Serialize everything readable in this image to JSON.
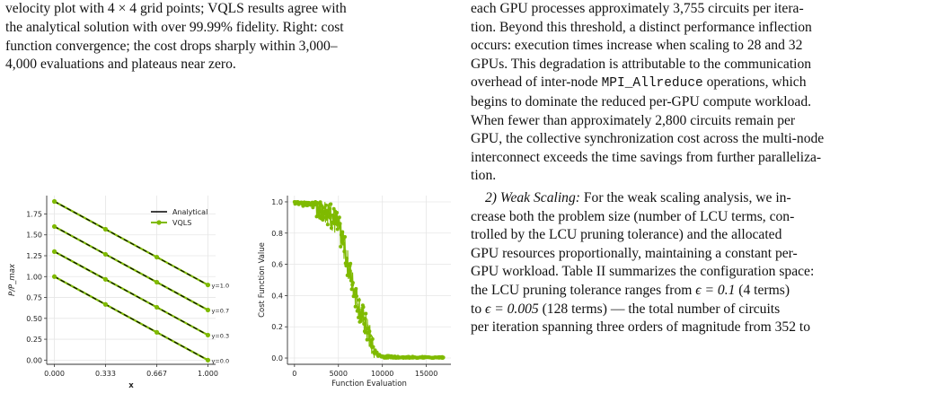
{
  "caption": {
    "line1": "velocity plot with 4 × 4 grid points; VQLS results agree with",
    "line2": "the analytical solution with over 99.99% fidelity. Right: cost",
    "line3": "function convergence; the cost drops sharply within 3,000–",
    "line4": "4,000 evaluations and plateaus near zero."
  },
  "right_column": {
    "p1_a": "each GPU processes approximately 3,755 circuits per itera-",
    "p1_b": "tion. Beyond this threshold, a distinct performance inflection",
    "p1_c": "occurs: execution times increase when scaling to 28 and 32",
    "p1_d": "GPUs. This degradation is attributable to the communication",
    "p1_e_pre": "overhead of inter-node ",
    "p1_e_code": "MPI_Allreduce",
    "p1_e_post": " operations, which",
    "p1_f": "begins to dominate the reduced per-GPU compute workload.",
    "p1_g": "When fewer than approximately 2,800 circuits remain per",
    "p1_h": "GPU, the collective synchronization cost across the multi-node",
    "p1_i": "interconnect exceeds the time savings from further paralleliza-",
    "p1_j": "tion.",
    "p2_heading": "2) Weak Scaling:",
    "p2_a": " For the weak scaling analysis, we in-",
    "p2_b": "crease both the problem size (number of LCU terms, con-",
    "p2_c": "trolled by the LCU pruning tolerance) and the allocated",
    "p2_d": "GPU resources proportionally, maintaining a constant per-",
    "p2_e": "GPU workload. Table II summarizes the configuration space:",
    "p2_f_pre": "the LCU pruning tolerance ranges from ",
    "p2_f_eps1": "ϵ = 0.1",
    "p2_f_post": " (4 terms)",
    "p2_g_pre": "to ",
    "p2_g_eps2": "ϵ = 0.005",
    "p2_g_post": " (128 terms) — the total number of circuits",
    "p2_h": "per iteration spanning three orders of magnitude from 352 to"
  },
  "chart_data": [
    {
      "type": "line",
      "xlabel": "x",
      "ylabel": "P/P_max",
      "xticks": [
        "0.000",
        "0.333",
        "0.667",
        "1.000"
      ],
      "yticks": [
        "0.00",
        "0.25",
        "0.50",
        "0.75",
        "1.00",
        "1.25",
        "1.50",
        "1.75"
      ],
      "xlim": [
        -0.05,
        1.05
      ],
      "ylim": [
        -0.05,
        1.97
      ],
      "grid": true,
      "legend": "top-right",
      "legend_entries": [
        "Analytical",
        "VQLS"
      ],
      "x": [
        0.0,
        0.333,
        0.667,
        1.0
      ],
      "series": [
        {
          "label": "y=1.0",
          "values": [
            1.9,
            1.567,
            1.233,
            0.9
          ]
        },
        {
          "label": "y=0.7",
          "values": [
            1.6,
            1.267,
            0.933,
            0.6
          ]
        },
        {
          "label": "y=0.3",
          "values": [
            1.3,
            0.967,
            0.633,
            0.3
          ]
        },
        {
          "label": "y=0.0",
          "values": [
            1.0,
            0.667,
            0.333,
            0.0
          ]
        }
      ],
      "colors": {
        "analytical": "#000000",
        "vqls": "#7fba00"
      }
    },
    {
      "type": "scatter",
      "xlabel": "Function Evaluation",
      "ylabel": "Cost Function Value",
      "xticks": [
        "0",
        "5000",
        "10000",
        "15000"
      ],
      "yticks": [
        "0.0",
        "0.2",
        "0.4",
        "0.6",
        "0.8",
        "1.0"
      ],
      "xlim": [
        -800,
        17800
      ],
      "ylim": [
        -0.04,
        1.04
      ],
      "grid": true,
      "color": "#7fba00",
      "curve": [
        [
          0,
          1.0
        ],
        [
          500,
          1.0
        ],
        [
          1000,
          0.99
        ],
        [
          1500,
          1.0
        ],
        [
          2000,
          0.99
        ],
        [
          2500,
          0.98
        ],
        [
          3000,
          0.97
        ],
        [
          3500,
          0.96
        ],
        [
          4000,
          0.93
        ],
        [
          4500,
          0.88
        ],
        [
          5000,
          0.83
        ],
        [
          5500,
          0.75
        ],
        [
          6000,
          0.62
        ],
        [
          6500,
          0.5
        ],
        [
          7000,
          0.4
        ],
        [
          7500,
          0.3
        ],
        [
          8000,
          0.22
        ],
        [
          8500,
          0.14
        ],
        [
          9000,
          0.06
        ],
        [
          9500,
          0.02
        ],
        [
          10000,
          0.01
        ],
        [
          11000,
          0.005
        ],
        [
          12000,
          0.003
        ],
        [
          13000,
          0.002
        ],
        [
          14000,
          0.001
        ],
        [
          15000,
          0.001
        ],
        [
          16000,
          0.0
        ],
        [
          17000,
          0.0
        ]
      ]
    }
  ]
}
